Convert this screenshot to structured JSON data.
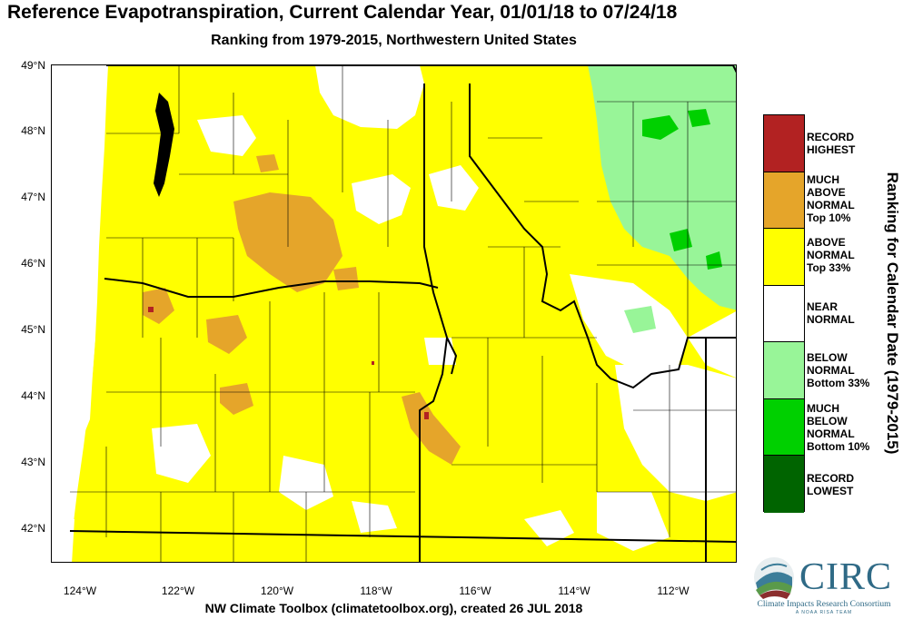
{
  "title": "Reference Evapotranspiration, Current Calendar Year, 01/01/18 to 07/24/18",
  "subtitle": "Ranking from 1979-2015, Northwestern United States",
  "footer": "NW Climate Toolbox (climatetoolbox.org), created 26 JUL 2018",
  "lat_labels": [
    "49°N",
    "48°N",
    "47°N",
    "46°N",
    "45°N",
    "44°N",
    "43°N",
    "42°N"
  ],
  "lon_labels": [
    "124°W",
    "122°W",
    "120°W",
    "118°W",
    "116°W",
    "114°W",
    "112°W"
  ],
  "legend": {
    "title": "Ranking for Calendar Date (1979-2015)",
    "items": [
      {
        "lines": [
          "RECORD",
          "HIGHEST"
        ],
        "color": "#b22222"
      },
      {
        "lines": [
          "MUCH",
          "ABOVE",
          "NORMAL",
          "Top 10%"
        ],
        "color": "#e5a52a"
      },
      {
        "lines": [
          "ABOVE",
          "NORMAL",
          "Top 33%"
        ],
        "color": "#ffff00"
      },
      {
        "lines": [
          "NEAR",
          "NORMAL"
        ],
        "color": "#ffffff"
      },
      {
        "lines": [
          "BELOW",
          "NORMAL",
          "Bottom 33%"
        ],
        "color": "#98f598"
      },
      {
        "lines": [
          "MUCH",
          "BELOW",
          "NORMAL",
          "Bottom 10%"
        ],
        "color": "#00d000"
      },
      {
        "lines": [
          "RECORD",
          "LOWEST"
        ],
        "color": "#006400"
      }
    ]
  },
  "logo": {
    "text": "CIRC",
    "subtitle": "Climate Impacts Research Consortium",
    "tagline": "A NOAA RISA TEAM",
    "icon": "circ-logo-icon"
  },
  "map_colors": {
    "land": "#ffff00",
    "near_normal": "#ffffff",
    "much_above": "#e5a52a",
    "below": "#98f598",
    "much_below": "#00d000",
    "record_high": "#b22222",
    "water": "#000000"
  }
}
